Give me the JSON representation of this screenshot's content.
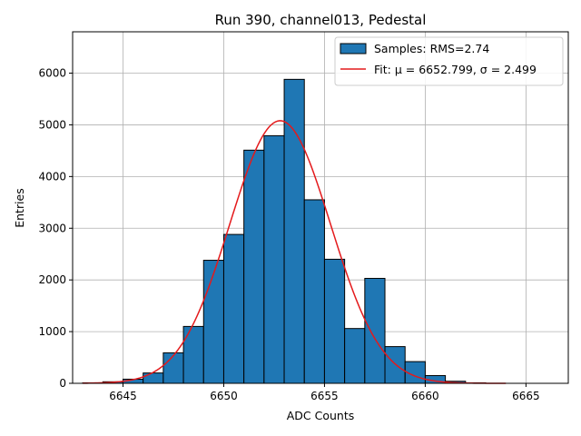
{
  "chart_data": {
    "type": "bar",
    "title": "Run 390, channel013, Pedestal",
    "xlabel": "ADC Counts",
    "ylabel": "Entries",
    "xlim": [
      6642.5,
      6667.1
    ],
    "ylim": [
      0,
      6800
    ],
    "xticks": [
      6645,
      6650,
      6655,
      6660,
      6665
    ],
    "yticks": [
      0,
      1000,
      2000,
      3000,
      4000,
      5000,
      6000
    ],
    "grid": true,
    "legend_position": "top-right",
    "bin_width": 1,
    "bins": [
      {
        "left": 6643,
        "value": 10
      },
      {
        "left": 6644,
        "value": 30
      },
      {
        "left": 6645,
        "value": 80
      },
      {
        "left": 6646,
        "value": 200
      },
      {
        "left": 6647,
        "value": 590
      },
      {
        "left": 6648,
        "value": 1100
      },
      {
        "left": 6649,
        "value": 2380
      },
      {
        "left": 6650,
        "value": 2880
      },
      {
        "left": 6651,
        "value": 4510
      },
      {
        "left": 6652,
        "value": 4790
      },
      {
        "left": 6653,
        "value": 5880
      },
      {
        "left": 6654,
        "value": 3550
      },
      {
        "left": 6655,
        "value": 2400
      },
      {
        "left": 6656,
        "value": 1060
      },
      {
        "left": 6657,
        "value": 2030
      },
      {
        "left": 6658,
        "value": 710
      },
      {
        "left": 6659,
        "value": 420
      },
      {
        "left": 6660,
        "value": 150
      },
      {
        "left": 6661,
        "value": 40
      },
      {
        "left": 6662,
        "value": 10
      }
    ],
    "fit": {
      "mu": 6652.799,
      "sigma": 2.499,
      "amplitude": 5080,
      "x_range": [
        6643,
        6664
      ]
    },
    "series": [
      {
        "name": "Samples: RMS=2.74",
        "color": "#1f77b4",
        "kind": "histogram"
      },
      {
        "name": "Fit: μ = 6652.799, σ = 2.499",
        "color": "#e41a1c",
        "kind": "line"
      }
    ]
  }
}
